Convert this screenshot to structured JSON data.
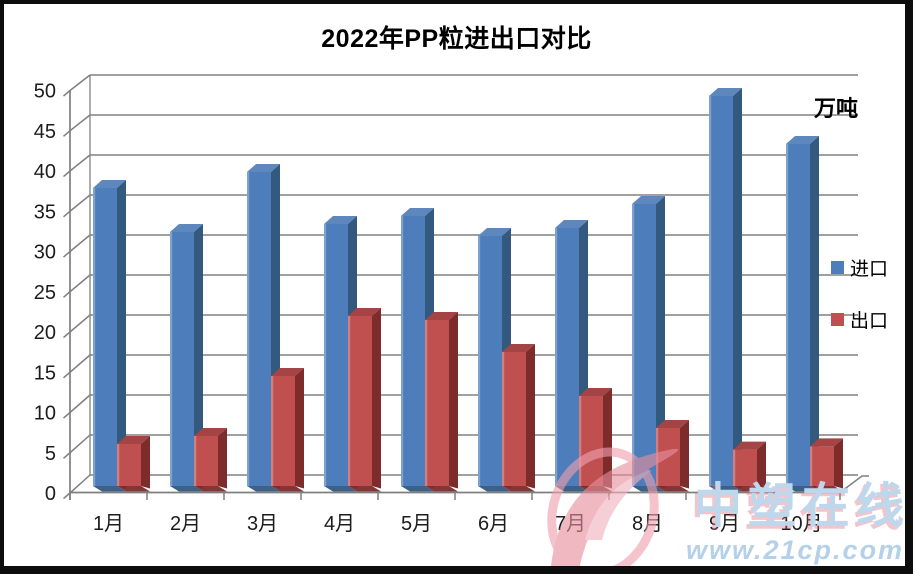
{
  "chart_data": {
    "type": "bar",
    "variant": "3d-clustered-column",
    "title": "2022年PP粒进出口对比",
    "unit_label": "万吨",
    "categories": [
      "1月",
      "2月",
      "3月",
      "4月",
      "5月",
      "6月",
      "7月",
      "8月",
      "9月",
      "10月"
    ],
    "series": [
      {
        "key": "import",
        "name": "进口",
        "values": [
          37.5,
          32,
          39.5,
          33,
          34,
          31.5,
          32.5,
          35.5,
          49,
          43
        ],
        "color": "#4d7ebb",
        "top_color": "#5e87bd",
        "side_color": "#33597f"
      },
      {
        "key": "export",
        "name": "出口",
        "values": [
          5.5,
          6.5,
          14,
          21.5,
          21,
          17,
          11.5,
          7.5,
          4.8,
          5.2
        ],
        "color": "#c05050",
        "top_color": "#a54444",
        "side_color": "#7d2b2b"
      }
    ],
    "ylim": [
      0,
      50
    ],
    "yticks": [
      0,
      5,
      10,
      15,
      20,
      25,
      30,
      35,
      40,
      45,
      50
    ],
    "grid": true,
    "legend_position": "right",
    "gridline_color": "#818181",
    "axis_color": "#7f7f7f",
    "text_color": "#1c1c1c"
  },
  "watermark": {
    "brand": "中塑在线",
    "url": "www.21cp.com",
    "brand_color": "#bdd7ec",
    "url_color": "#b5d1e9",
    "accent_color": "#e78f9e"
  },
  "frame": {
    "color": "#0d0d0d"
  }
}
